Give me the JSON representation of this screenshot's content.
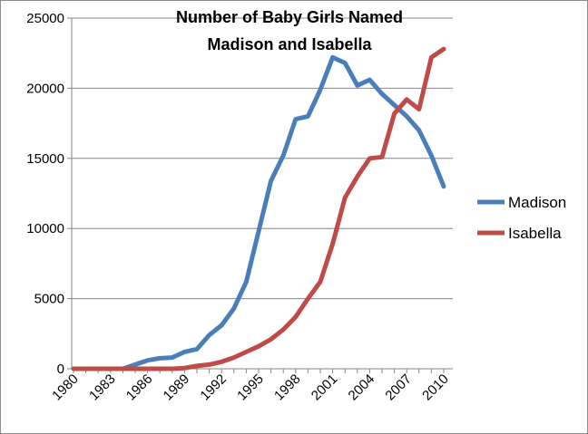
{
  "chart_data": {
    "type": "line",
    "title_lines": [
      "Number of Baby Girls Named",
      "Madison and Isabella"
    ],
    "xlabel": "",
    "ylabel": "",
    "x": [
      1980,
      1981,
      1982,
      1983,
      1984,
      1985,
      1986,
      1987,
      1988,
      1989,
      1990,
      1991,
      1992,
      1993,
      1994,
      1995,
      1996,
      1997,
      1998,
      1999,
      2000,
      2001,
      2002,
      2003,
      2004,
      2005,
      2006,
      2007,
      2008,
      2009,
      2010
    ],
    "x_tick_labels": [
      "1980",
      "1983",
      "1986",
      "1989",
      "1992",
      "1995",
      "1998",
      "2001",
      "2004",
      "2007",
      "2010"
    ],
    "x_tick_values": [
      1980,
      1983,
      1986,
      1989,
      1992,
      1995,
      1998,
      2001,
      2004,
      2007,
      2010
    ],
    "ylim": [
      0,
      25000
    ],
    "y_ticks": [
      0,
      5000,
      10000,
      15000,
      20000,
      25000
    ],
    "y_tick_labels": [
      "0",
      "5000",
      "10000",
      "15000",
      "20000",
      "25000"
    ],
    "grid": "horizontal",
    "legend_position": "right",
    "series": [
      {
        "name": "Madison",
        "color": "#4a7ebb",
        "values": [
          0,
          0,
          0,
          0,
          0,
          300,
          600,
          750,
          800,
          1200,
          1400,
          2400,
          3100,
          4300,
          6200,
          9800,
          13400,
          15200,
          17800,
          18000,
          19900,
          22200,
          21800,
          20200,
          20600,
          19600,
          18800,
          18000,
          17000,
          15200,
          13000
        ]
      },
      {
        "name": "Isabella",
        "color": "#be4b48",
        "values": [
          0,
          0,
          0,
          0,
          0,
          0,
          0,
          0,
          0,
          50,
          200,
          300,
          500,
          800,
          1200,
          1600,
          2100,
          2800,
          3700,
          5000,
          6200,
          8900,
          12200,
          13700,
          15000,
          15100,
          18200,
          19200,
          18500,
          22200,
          22800
        ]
      }
    ]
  }
}
